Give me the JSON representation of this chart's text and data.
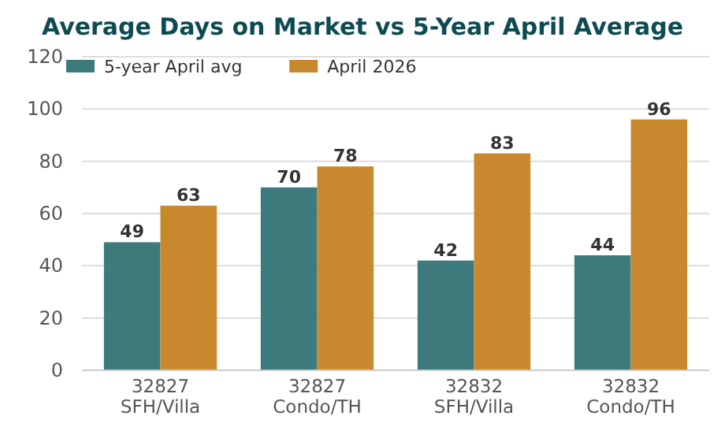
{
  "chart_data": {
    "type": "bar",
    "title": "Average Days on Market vs 5-Year April Average",
    "categories": [
      "32827\nSFH/Villa",
      "32827\nCondo/TH",
      "32832\nSFH/Villa",
      "32832\nCondo/TH"
    ],
    "series": [
      {
        "name": "5-year April avg",
        "color": "#3d7a7c",
        "values": [
          49,
          70,
          42,
          44
        ]
      },
      {
        "name": "April 2026",
        "color": "#c8882e",
        "values": [
          63,
          78,
          83,
          96
        ]
      }
    ],
    "ylim": [
      0,
      120
    ],
    "yticks": [
      0,
      20,
      40,
      60,
      80,
      100,
      120
    ],
    "grid": "y",
    "legend": "top left",
    "data_labels": true
  }
}
